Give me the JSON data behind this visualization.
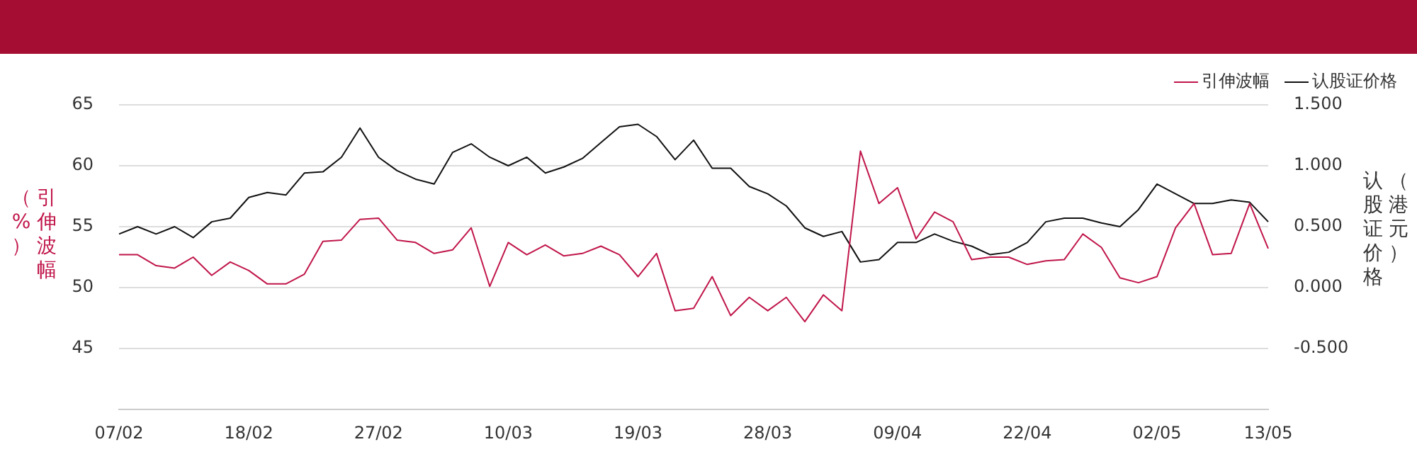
{
  "chart_data": {
    "type": "line",
    "ylabel": "引伸波幅（%）",
    "y2label": "认股证价格（港元）",
    "categories": [
      "07/02",
      null,
      null,
      null,
      null,
      null,
      null,
      "18/02",
      null,
      null,
      null,
      null,
      null,
      null,
      "27/02",
      null,
      null,
      null,
      null,
      null,
      null,
      "10/03",
      null,
      null,
      null,
      null,
      null,
      null,
      "19/03",
      null,
      null,
      null,
      null,
      null,
      null,
      "28/03",
      null,
      null,
      null,
      null,
      null,
      null,
      "09/04",
      null,
      null,
      null,
      null,
      null,
      null,
      "22/04",
      null,
      null,
      null,
      null,
      null,
      null,
      "02/05",
      null,
      null,
      null,
      null,
      null,
      "13/05"
    ],
    "series": [
      {
        "name": "引伸波幅",
        "color": "#c0164a",
        "values": [
          52.7,
          52.7,
          51.8,
          51.6,
          52.5,
          51.0,
          52.1,
          51.4,
          50.3,
          50.3,
          51.1,
          53.8,
          53.9,
          55.6,
          55.7,
          53.9,
          53.7,
          52.8,
          53.1,
          54.9,
          50.1,
          53.7,
          52.7,
          53.5,
          52.6,
          52.8,
          53.4,
          52.7,
          50.9,
          52.8,
          48.1,
          48.3,
          50.9,
          47.7,
          49.2,
          48.1,
          49.2,
          47.2,
          49.4,
          48.1,
          61.2,
          56.9,
          58.2,
          54.0,
          56.2,
          55.4,
          52.3,
          52.5,
          52.5,
          51.9,
          52.2,
          52.3,
          54.4,
          53.3,
          50.8,
          50.4,
          50.9,
          54.9,
          56.9,
          52.7,
          52.8,
          56.9,
          53.2
        ]
      },
      {
        "name": "认股证价格",
        "color": "#111111",
        "axis": "y2",
        "values": [
          0.44,
          0.5,
          0.44,
          0.5,
          0.41,
          0.54,
          0.57,
          0.74,
          0.78,
          0.76,
          0.94,
          0.95,
          1.07,
          1.31,
          1.07,
          0.96,
          0.89,
          0.85,
          1.11,
          1.18,
          1.07,
          1.0,
          1.07,
          0.94,
          0.99,
          1.06,
          1.19,
          1.32,
          1.34,
          1.24,
          1.05,
          1.21,
          0.98,
          0.98,
          0.83,
          0.77,
          0.67,
          0.49,
          0.42,
          0.46,
          0.21,
          0.23,
          0.37,
          0.37,
          0.44,
          0.38,
          0.34,
          0.27,
          0.29,
          0.37,
          0.54,
          0.57,
          0.57,
          0.53,
          0.5,
          0.64,
          0.85,
          0.77,
          0.69,
          0.69,
          0.72,
          0.7,
          0.54
        ]
      }
    ],
    "ylim": [
      40,
      65
    ],
    "yticks": [
      45,
      50,
      55,
      60,
      65
    ],
    "y2lim": [
      -1,
      1.5
    ],
    "y2ticks": [
      {
        "value": -0.5,
        "label": "-0.500"
      },
      {
        "value": 0,
        "label": "0.000"
      },
      {
        "value": 0.5,
        "label": "0.500"
      },
      {
        "value": 1,
        "label": "1.000"
      },
      {
        "value": 1.5,
        "label": "1.500"
      }
    ],
    "grid": "y",
    "legend": "top right",
    "marker": "none",
    "line_style": "solid"
  }
}
